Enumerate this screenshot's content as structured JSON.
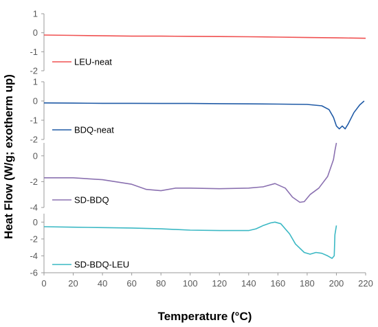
{
  "figure": {
    "xlabel": "Temperature (°C)",
    "ylabel": "Heat Flow (W/g; exotherm up)"
  },
  "chart_data": [
    {
      "type": "line",
      "name": "LEU-neat",
      "color": "#f05050",
      "ylim": [
        -2,
        1
      ],
      "yticks": [
        "1",
        "0",
        "-1",
        "-2"
      ],
      "xlim": [
        0,
        220
      ],
      "x": [
        0,
        20,
        40,
        60,
        80,
        100,
        120,
        140,
        160,
        180,
        200,
        220
      ],
      "y": [
        -0.12,
        -0.14,
        -0.16,
        -0.18,
        -0.18,
        -0.19,
        -0.2,
        -0.21,
        -0.23,
        -0.25,
        -0.27,
        -0.29
      ]
    },
    {
      "type": "line",
      "name": "BDQ-neat",
      "color": "#1f5aa6",
      "ylim": [
        -2,
        1
      ],
      "yticks": [
        "1",
        "0",
        "-1",
        "-2"
      ],
      "xlim": [
        0,
        220
      ],
      "x": [
        0,
        20,
        40,
        60,
        80,
        100,
        120,
        140,
        160,
        180,
        190,
        195,
        198,
        200,
        202,
        204,
        206,
        208,
        212,
        216,
        219
      ],
      "y": [
        -0.1,
        -0.11,
        -0.12,
        -0.12,
        -0.13,
        -0.13,
        -0.14,
        -0.15,
        -0.16,
        -0.18,
        -0.25,
        -0.45,
        -0.85,
        -1.3,
        -1.45,
        -1.3,
        -1.45,
        -1.2,
        -0.6,
        -0.2,
        0.0
      ]
    },
    {
      "type": "line",
      "name": "SD-BDQ",
      "color": "#8a70b0",
      "ylim": [
        -4,
        1
      ],
      "yticks": [
        "0",
        "-2",
        "-4"
      ],
      "xlim": [
        0,
        220
      ],
      "x": [
        0,
        20,
        40,
        60,
        70,
        80,
        90,
        100,
        120,
        140,
        150,
        158,
        165,
        170,
        175,
        178,
        182,
        188,
        194,
        198,
        199,
        200
      ],
      "y": [
        -1.7,
        -1.7,
        -1.85,
        -2.2,
        -2.6,
        -2.7,
        -2.5,
        -2.5,
        -2.55,
        -2.5,
        -2.4,
        -2.15,
        -2.5,
        -3.2,
        -3.6,
        -3.55,
        -3.0,
        -2.5,
        -1.6,
        -0.3,
        0.4,
        1.0
      ]
    },
    {
      "type": "line",
      "name": "SD-BDQ-LEU",
      "color": "#3ab8c4",
      "ylim": [
        -6,
        1
      ],
      "yticks": [
        "0",
        "-2",
        "-4",
        "-6"
      ],
      "xlim": [
        0,
        220
      ],
      "x": [
        0,
        20,
        40,
        60,
        80,
        100,
        120,
        140,
        145,
        150,
        155,
        158,
        162,
        168,
        172,
        178,
        182,
        186,
        190,
        194,
        197,
        198.5,
        199,
        200
      ],
      "y": [
        -0.55,
        -0.6,
        -0.65,
        -0.7,
        -0.8,
        -0.95,
        -1.0,
        -1.0,
        -0.8,
        -0.4,
        -0.1,
        0.0,
        -0.2,
        -1.4,
        -2.6,
        -3.6,
        -3.8,
        -3.6,
        -3.7,
        -4.0,
        -4.3,
        -4.0,
        -1.5,
        -0.4
      ]
    }
  ],
  "xticks": [
    "0",
    "20",
    "40",
    "60",
    "80",
    "100",
    "120",
    "140",
    "160",
    "180",
    "200",
    "220"
  ]
}
